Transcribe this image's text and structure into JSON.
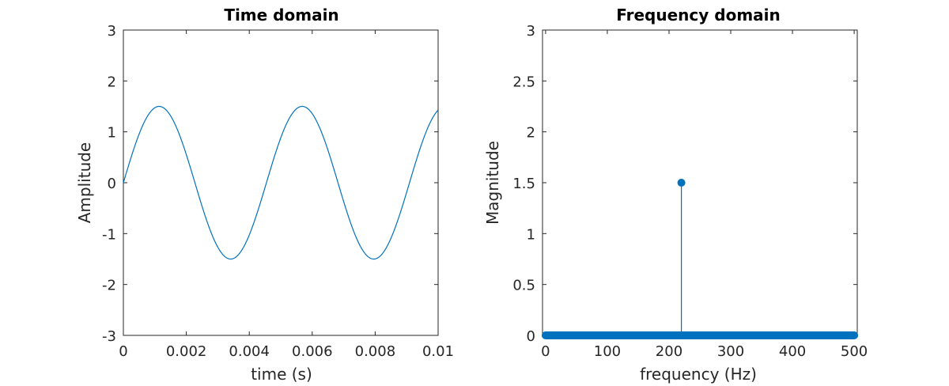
{
  "colors": {
    "series": "#0072BD",
    "axis": "#262626",
    "background": "#ffffff"
  },
  "chart_data": [
    {
      "type": "line",
      "title": "Time domain",
      "xlabel": "time (s)",
      "ylabel": "Amplitude",
      "xlim": [
        0,
        0.01
      ],
      "ylim": [
        -3,
        3
      ],
      "xticks": [
        0,
        0.002,
        0.004,
        0.006,
        0.008,
        0.01
      ],
      "xtick_labels": [
        "0",
        "0.002",
        "0.004",
        "0.006",
        "0.008",
        "0.01"
      ],
      "yticks": [
        -3,
        -2,
        -1,
        0,
        1,
        2,
        3
      ],
      "ytick_labels": [
        "-3",
        "-2",
        "-1",
        "0",
        "1",
        "2",
        "3"
      ],
      "grid": false,
      "series": [
        {
          "function": "sine",
          "amplitude": 1.5,
          "frequency_hz": 220,
          "x": [
            0,
            0.0005,
            0.001,
            0.00114,
            0.0015,
            0.002,
            0.0025,
            0.003,
            0.0034,
            0.004,
            0.0045,
            0.005,
            0.0057,
            0.006,
            0.0065,
            0.007,
            0.0075,
            0.0079,
            0.0085,
            0.009,
            0.0095,
            0.01
          ],
          "y": [
            0,
            0.96,
            1.48,
            1.5,
            1.37,
            0.63,
            -0.35,
            -1.22,
            -1.5,
            -1.14,
            -0.28,
            0.7,
            1.5,
            1.33,
            0.58,
            -0.43,
            -1.28,
            -1.5,
            -1.08,
            -0.19,
            0.78,
            1.4
          ]
        }
      ]
    },
    {
      "type": "stem",
      "title": "Frequency domain",
      "xlabel": "frequency (Hz)",
      "ylabel": "Magnitude",
      "xlim": [
        -5,
        505
      ],
      "ylim": [
        0,
        3
      ],
      "xticks": [
        0,
        100,
        200,
        300,
        400,
        500
      ],
      "xtick_labels": [
        "0",
        "100",
        "200",
        "300",
        "400",
        "500"
      ],
      "yticks": [
        0,
        0.5,
        1,
        1.5,
        2,
        2.5,
        3
      ],
      "ytick_labels": [
        "0",
        "0.5",
        "1",
        "1.5",
        "2",
        "2.5",
        "3"
      ],
      "grid": false,
      "series": [
        {
          "baseline_x_range": [
            0,
            500
          ],
          "baseline_value": 0,
          "peak_x": 220,
          "peak_value": 1.5
        }
      ]
    }
  ]
}
